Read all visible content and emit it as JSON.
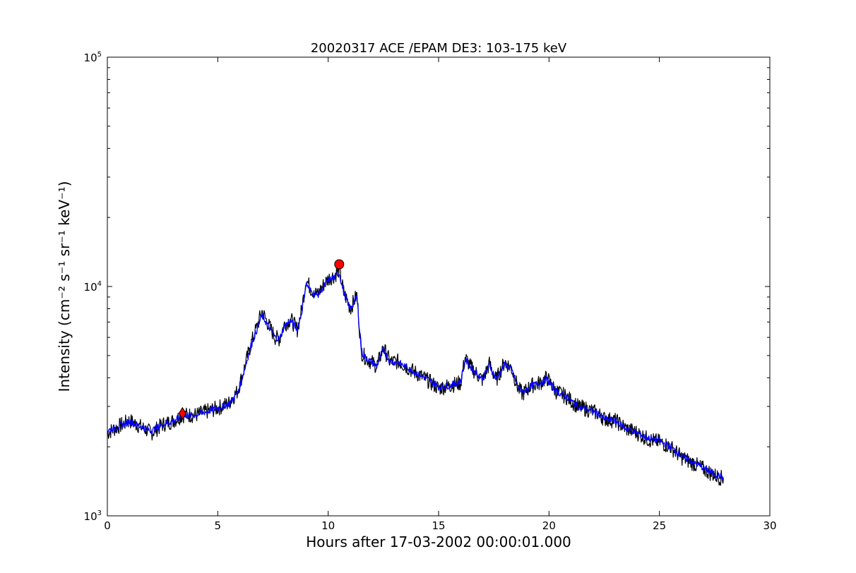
{
  "chart_data": {
    "type": "line",
    "title": "20020317 ACE /EPAM DE3: 103-175 keV",
    "xlabel": "Hours after 17-03-2002 00:00:01.000",
    "ylabel": "Intensity (cm⁻² s⁻¹ sr⁻¹ keV⁻¹)",
    "xlim": [
      0,
      30
    ],
    "ylim": [
      1000,
      100000
    ],
    "yscale": "log",
    "grid": false,
    "x_ticks": [
      0,
      5,
      10,
      15,
      20,
      25,
      30
    ],
    "x_tick_labels": [
      "0",
      "5",
      "10",
      "15",
      "20",
      "25",
      "30"
    ],
    "y_ticks": [
      1000,
      10000,
      100000
    ],
    "y_tick_labels": [
      {
        "base": "10",
        "exp": "3"
      },
      {
        "base": "10",
        "exp": "4"
      },
      {
        "base": "10",
        "exp": "5"
      }
    ],
    "series": [
      {
        "style": "raw",
        "color": "#000000",
        "x": [
          0,
          0.5,
          1.0,
          1.5,
          2.0,
          2.5,
          3.0,
          3.4,
          4.0,
          4.5,
          5.0,
          5.5,
          5.9,
          6.2,
          6.5,
          6.8,
          7.0,
          7.3,
          7.6,
          7.8,
          8.0,
          8.3,
          8.6,
          8.8,
          9.0,
          9.2,
          9.5,
          9.8,
          10.0,
          10.3,
          10.5,
          10.7,
          11.0,
          11.3,
          11.5,
          11.6,
          11.8,
          12.2,
          12.5,
          12.8,
          13.2,
          13.8,
          14.5,
          15.0,
          15.5,
          16.0,
          16.2,
          16.5,
          17.0,
          17.3,
          17.6,
          18.0,
          18.3,
          18.6,
          18.8,
          19.2,
          19.6,
          19.9,
          20.3,
          20.8,
          21.3,
          21.8,
          22.2,
          22.5,
          23.0,
          23.5,
          24.0,
          24.5,
          25.0,
          25.5,
          26.0,
          26.5,
          27.0,
          27.5,
          27.9
        ],
        "y": [
          2300,
          2450,
          2600,
          2450,
          2300,
          2500,
          2600,
          2750,
          2750,
          2850,
          2950,
          3100,
          3500,
          4400,
          5600,
          6800,
          7800,
          6800,
          6000,
          5900,
          6800,
          7200,
          6500,
          7900,
          10800,
          9800,
          9200,
          10200,
          10800,
          11200,
          11800,
          9500,
          8000,
          9200,
          5200,
          5000,
          4800,
          4500,
          5400,
          4700,
          4700,
          4300,
          3900,
          3600,
          3700,
          3800,
          4900,
          4400,
          3900,
          4600,
          3900,
          4700,
          4400,
          3600,
          3400,
          3700,
          3800,
          4000,
          3500,
          3300,
          3000,
          2900,
          2800,
          2650,
          2600,
          2400,
          2300,
          2150,
          2100,
          2000,
          1800,
          1700,
          1600,
          1500,
          1450
        ]
      },
      {
        "style": "smoothed",
        "color": "#0000ff",
        "x": [
          0,
          0.5,
          1.0,
          1.5,
          2.0,
          2.5,
          3.0,
          3.4,
          4.0,
          4.5,
          5.0,
          5.5,
          5.9,
          6.2,
          6.5,
          6.8,
          7.0,
          7.3,
          7.6,
          7.8,
          8.0,
          8.3,
          8.6,
          8.8,
          9.0,
          9.2,
          9.5,
          9.8,
          10.0,
          10.3,
          10.5,
          10.7,
          11.0,
          11.3,
          11.5,
          11.6,
          11.8,
          12.2,
          12.5,
          12.8,
          13.2,
          13.8,
          14.5,
          15.0,
          15.5,
          16.0,
          16.2,
          16.5,
          17.0,
          17.3,
          17.6,
          18.0,
          18.3,
          18.6,
          18.8,
          19.2,
          19.6,
          19.9,
          20.3,
          20.8,
          21.3,
          21.8,
          22.2,
          22.5,
          23.0,
          23.5,
          24.0,
          24.5,
          25.0,
          25.5,
          26.0,
          26.5,
          27.0,
          27.5,
          27.9
        ],
        "y": [
          2350,
          2450,
          2580,
          2450,
          2350,
          2500,
          2600,
          2720,
          2750,
          2850,
          2950,
          3080,
          3450,
          4300,
          5500,
          6600,
          7500,
          6700,
          6000,
          5900,
          6700,
          7100,
          6500,
          7700,
          10300,
          9600,
          9100,
          10000,
          10600,
          11000,
          11500,
          9400,
          8000,
          9000,
          5300,
          5000,
          4800,
          4500,
          5300,
          4700,
          4650,
          4300,
          3950,
          3650,
          3700,
          3850,
          4800,
          4400,
          3950,
          4550,
          3950,
          4600,
          4350,
          3650,
          3450,
          3700,
          3800,
          3950,
          3500,
          3300,
          3000,
          2900,
          2800,
          2650,
          2600,
          2400,
          2300,
          2180,
          2120,
          2000,
          1820,
          1720,
          1620,
          1520,
          1470
        ]
      }
    ],
    "markers": [
      {
        "shape": "diamond",
        "color": "#ff0000",
        "x": 3.4,
        "y": 2800
      },
      {
        "shape": "circle",
        "color": "#ff0000",
        "x": 10.5,
        "y": 12500
      }
    ]
  }
}
